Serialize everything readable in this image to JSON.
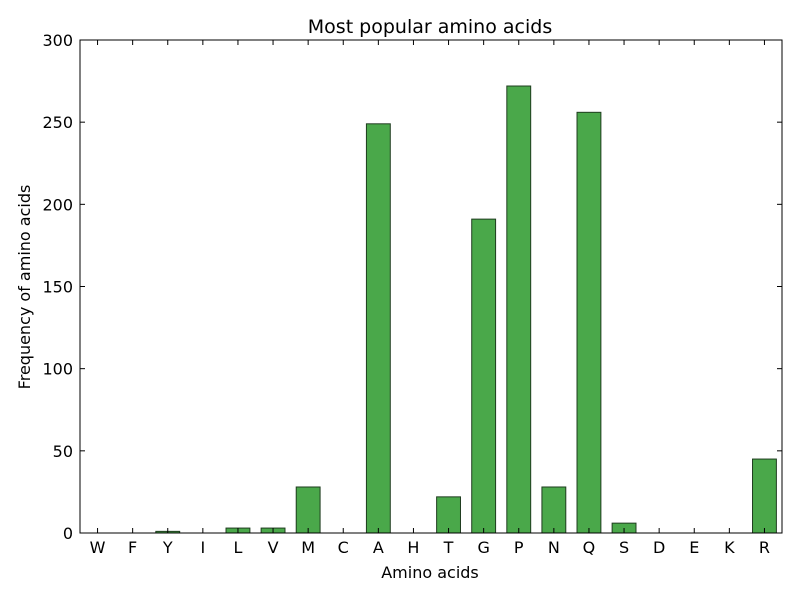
{
  "chart_data": {
    "type": "bar",
    "title": "Most popular amino acids",
    "xlabel": "Amino acids",
    "ylabel": "Frequency of amino acids",
    "categories": [
      "W",
      "F",
      "Y",
      "I",
      "L",
      "V",
      "M",
      "C",
      "A",
      "H",
      "T",
      "G",
      "P",
      "N",
      "Q",
      "S",
      "D",
      "E",
      "K",
      "R"
    ],
    "values": [
      0,
      0,
      1,
      0,
      3,
      3,
      28,
      0,
      249,
      0,
      22,
      191,
      272,
      28,
      256,
      6,
      0,
      0,
      0,
      45
    ],
    "ylim": [
      0,
      300
    ],
    "yticks": [
      0,
      50,
      100,
      150,
      200,
      250,
      300
    ],
    "grid": false,
    "legend": "none",
    "bar_color": "#4aa84a",
    "bar_edge_color": "#1f3d1f"
  }
}
